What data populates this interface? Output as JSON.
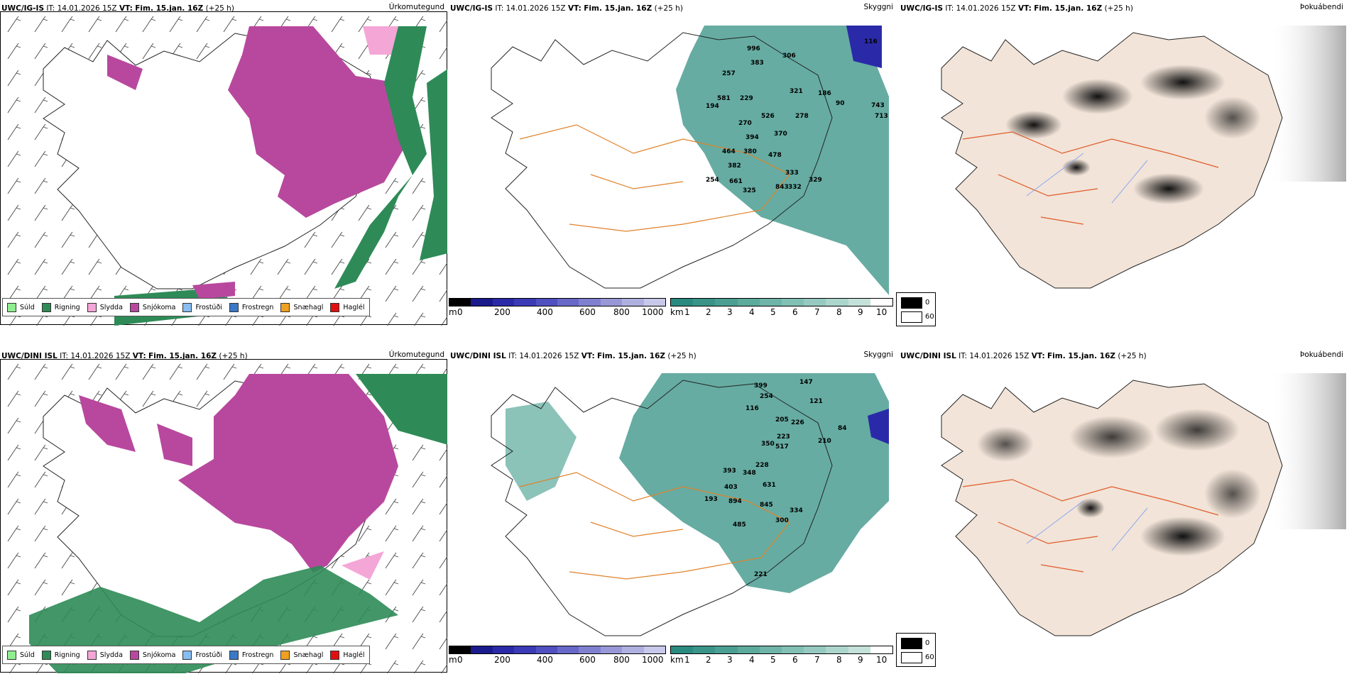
{
  "panels": {
    "top_precip": {
      "model": "UWC/IG-IS",
      "it_label": "IT:",
      "it": "14.01.2026 15Z",
      "vt_label": "VT:",
      "vt": "Fim. 15.jan. 16Z",
      "lead": "(+25 h)",
      "product": "Úrkomutegund"
    },
    "top_vis": {
      "model": "UWC/IG-IS",
      "it_label": "IT:",
      "it": "14.01.2026 15Z",
      "vt_label": "VT:",
      "vt": "Fim. 15.jan. 16Z",
      "lead": "(+25 h)",
      "product": "Skyggni"
    },
    "top_fog": {
      "model": "UWC/IG-IS",
      "it_label": "IT:",
      "it": "14.01.2026 15Z",
      "vt_label": "VT:",
      "vt": "Fim. 15.jan. 16Z",
      "lead": "(+25 h)",
      "product": "Þokuábendi"
    },
    "bot_precip": {
      "model": "UWC/DINI ISL",
      "it_label": "IT:",
      "it": "14.01.2026 15Z",
      "vt_label": "VT:",
      "vt": "Fim. 15.jan. 16Z",
      "lead": "(+25 h)",
      "product": "Úrkomutegund"
    },
    "bot_vis": {
      "model": "UWC/DINI ISL",
      "it_label": "IT:",
      "it": "14.01.2026 15Z",
      "vt_label": "VT:",
      "vt": "Fim. 15.jan. 16Z",
      "lead": "(+25 h)",
      "product": "Skyggni"
    },
    "bot_fog": {
      "model": "UWC/DINI ISL",
      "it_label": "IT:",
      "it": "14.01.2026 15Z",
      "vt_label": "VT:",
      "vt": "Fim. 15.jan. 16Z",
      "lead": "(+25 h)",
      "product": "Þokuábendi"
    }
  },
  "precip_legend": [
    {
      "label": "Súld",
      "color": "#90ee90"
    },
    {
      "label": "Rigning",
      "color": "#2e8b57"
    },
    {
      "label": "Slydda",
      "color": "#f4a6d7"
    },
    {
      "label": "Snjókoma",
      "color": "#b8489e"
    },
    {
      "label": "Frostúði",
      "color": "#87bdf0"
    },
    {
      "label": "Frostregn",
      "color": "#3a78c8"
    },
    {
      "label": "Snæhagl",
      "color": "#f0a020"
    },
    {
      "label": "Haglél",
      "color": "#e01010"
    }
  ],
  "ceiling_bar": {
    "unit": "m",
    "ticks": [
      "0",
      "200",
      "400",
      "600",
      "800",
      "1000"
    ],
    "colors": [
      "#000000",
      "#1a1a8c",
      "#2a2aa8",
      "#3b3bb8",
      "#5050c0",
      "#6868c8",
      "#8080d0",
      "#9898d8",
      "#b0b0e0",
      "#c8c8ea"
    ]
  },
  "visibility_bar": {
    "unit": "km",
    "ticks": [
      "1",
      "2",
      "3",
      "4",
      "5",
      "6",
      "7",
      "8",
      "9",
      "10"
    ],
    "colors": [
      "#2a8a80",
      "#3a9488",
      "#4b9e92",
      "#5caa9c",
      "#6eb4a8",
      "#82c0b4",
      "#96cac0",
      "#acd6cc",
      "#c4e2da",
      "#ffffff"
    ]
  },
  "fog_legend": {
    "high": "0",
    "low": "60",
    "high_color": "#000000",
    "low_color": "#ffffff"
  },
  "top_vis_labels": [
    "996",
    "306",
    "383",
    "116",
    "257",
    "581",
    "194",
    "526",
    "270",
    "394",
    "370",
    "464",
    "380",
    "478",
    "382",
    "254",
    "661",
    "325",
    "333",
    "843",
    "332",
    "329",
    "743",
    "713",
    "90",
    "186",
    "321",
    "229",
    "278"
  ],
  "bot_vis_labels": [
    "399",
    "147",
    "254",
    "121",
    "205",
    "226",
    "223",
    "517",
    "350",
    "228",
    "393",
    "348",
    "403",
    "631",
    "894",
    "845",
    "334",
    "300",
    "485",
    "221",
    "193",
    "116",
    "210",
    "84"
  ]
}
